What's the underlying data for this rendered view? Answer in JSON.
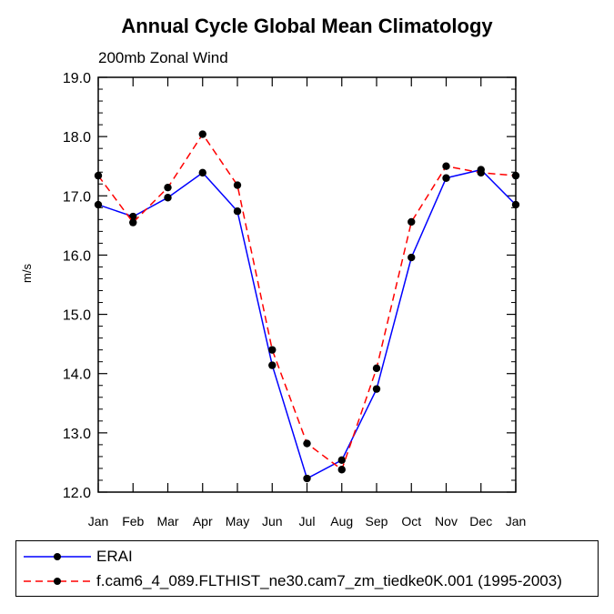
{
  "chart_data": {
    "type": "line",
    "title": "Annual Cycle Global Mean Climatology",
    "subtitle": "200mb Zonal Wind",
    "xlabel": "",
    "ylabel": "m/s",
    "categories": [
      "Jan",
      "Feb",
      "Mar",
      "Apr",
      "May",
      "Jun",
      "Jul",
      "Aug",
      "Sep",
      "Oct",
      "Nov",
      "Dec",
      "Jan"
    ],
    "ylim": [
      12.0,
      19.0
    ],
    "yticks": [
      "12.0",
      "13.0",
      "14.0",
      "15.0",
      "16.0",
      "17.0",
      "18.0",
      "19.0"
    ],
    "legend_position": "bottom",
    "series": [
      {
        "name": "ERAI",
        "color": "#0000ff",
        "dash": "solid",
        "values": [
          16.85,
          16.65,
          16.97,
          17.39,
          16.74,
          14.14,
          12.23,
          12.54,
          13.74,
          15.96,
          17.3,
          17.44,
          16.85
        ]
      },
      {
        "name": "f.cam6_4_089.FLTHIST_ne30.cam7_zm_tiedke0K.001 (1995-2003)",
        "color": "#ff0000",
        "dash": "dashed",
        "values": [
          17.34,
          16.55,
          17.14,
          18.04,
          17.18,
          14.4,
          12.82,
          12.38,
          14.09,
          16.56,
          17.5,
          17.39,
          17.34
        ]
      }
    ]
  }
}
